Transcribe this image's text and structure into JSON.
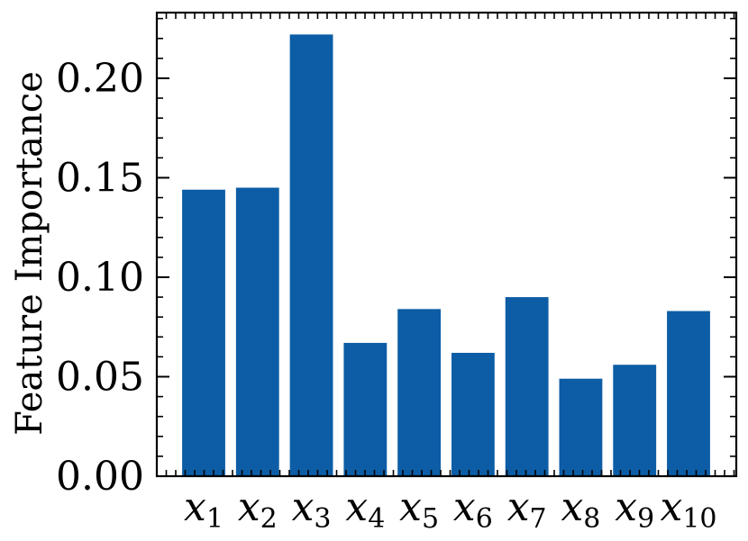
{
  "chart_data": {
    "type": "bar",
    "title": "",
    "xlabel": "",
    "ylabel": "Feature Importance",
    "categories": [
      {
        "base": "x",
        "sub": "1"
      },
      {
        "base": "x",
        "sub": "2"
      },
      {
        "base": "x",
        "sub": "3"
      },
      {
        "base": "x",
        "sub": "4"
      },
      {
        "base": "x",
        "sub": "5"
      },
      {
        "base": "x",
        "sub": "6"
      },
      {
        "base": "x",
        "sub": "7"
      },
      {
        "base": "x",
        "sub": "8"
      },
      {
        "base": "x",
        "sub": "9"
      },
      {
        "base": "x",
        "sub": "10"
      }
    ],
    "values": [
      0.144,
      0.145,
      0.222,
      0.067,
      0.084,
      0.062,
      0.09,
      0.049,
      0.056,
      0.083
    ],
    "ylim": [
      0,
      0.233
    ],
    "yticks": [
      0.0,
      0.05,
      0.1,
      0.15,
      0.2
    ],
    "ytick_labels": [
      "0.00",
      "0.05",
      "0.10",
      "0.15",
      "0.20"
    ],
    "yminor_step": 0.01,
    "grid": false,
    "colors": {
      "bar": "#0c5da5",
      "axis": "#000000"
    }
  }
}
